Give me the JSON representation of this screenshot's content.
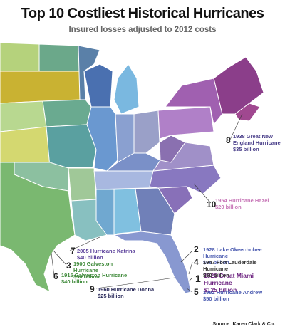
{
  "header": {
    "title": "Top 10 Costliest Historical Hurricanes",
    "subtitle": "Insured losses adjusted to 2012 costs"
  },
  "hurricanes": [
    {
      "rank": 1,
      "name": "1926 Great Miami Hurricane",
      "loss": "$125 billion"
    },
    {
      "rank": 2,
      "name": "1928 Lake Okeechobee Hurricane",
      "loss": "$65 billion"
    },
    {
      "rank": 3,
      "name": "1900 Galveston Hurricane",
      "loss": "$50 billion"
    },
    {
      "rank": 4,
      "name": "1947 Fort Lauderdale Hurricane",
      "loss": "$50 billion"
    },
    {
      "rank": 5,
      "name": "1992 Hurricane Andrew",
      "loss": "$50 billion"
    },
    {
      "rank": 6,
      "name": "1915 Galveston Hurricane",
      "loss": "$40 billion"
    },
    {
      "rank": 7,
      "name": "2005 Hurricane Katrina",
      "loss": "$40 billion"
    },
    {
      "rank": 8,
      "name": "1938 Great New England Hurricane",
      "loss": "$35 billion"
    },
    {
      "rank": 9,
      "name": "1960 Hurricane Donna",
      "loss": "$25 billion"
    },
    {
      "rank": 10,
      "name": "1954 Hurricane Hazel",
      "loss": "$20 billion"
    }
  ],
  "source": "Source: Karen Clark & Co."
}
